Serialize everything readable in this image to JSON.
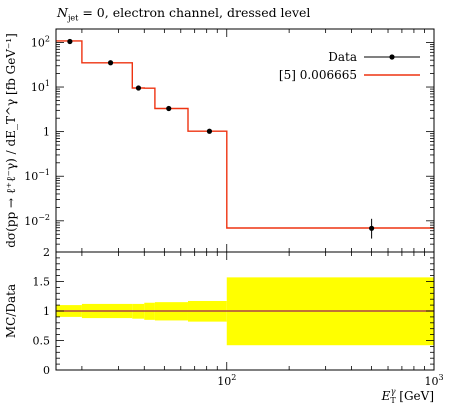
{
  "title": {
    "symbol": "N",
    "subscript": "jet",
    "rest": " = 0, electron channel, dressed level"
  },
  "colors": {
    "data": "#000000",
    "mc": "#ee3311",
    "band": "#ffff00",
    "ratio_line": "#9b1d55"
  },
  "chart_data": {
    "type": "line",
    "xscale": "log",
    "xlim": [
      15,
      1000
    ],
    "xlabel": "E_T^γ [GeV]",
    "x_ticks": [
      {
        "value": 100,
        "label": "10^2"
      },
      {
        "value": 1000,
        "label": "10^3"
      }
    ],
    "main_panel": {
      "yscale": "log",
      "ylim": [
        0.002,
        200
      ],
      "ylabel": "dσ(pp → ℓ⁺ℓ⁻γ) / dE_T^γ [fb GeV⁻¹]",
      "y_ticks": [
        {
          "value": 100,
          "label": "10^2"
        },
        {
          "value": 10,
          "label": "10^1"
        },
        {
          "value": 1,
          "label": "1"
        },
        {
          "value": 0.1,
          "label": "10^-1"
        },
        {
          "value": 0.01,
          "label": "10^-2"
        }
      ],
      "series": [
        {
          "name": "Data",
          "kind": "points",
          "points": [
            {
              "x": 17.5,
              "y": 105,
              "yerr": 3
            },
            {
              "x": 27.5,
              "y": 35,
              "yerr": 1
            },
            {
              "x": 37.5,
              "y": 9.5,
              "yerr": 0.3
            },
            {
              "x": 52.5,
              "y": 3.3,
              "yerr": 0.1
            },
            {
              "x": 82.5,
              "y": 1.02,
              "yerr": 0.03
            },
            {
              "x": 500,
              "y": 0.0068,
              "yerr_up": 0.0043,
              "yerr_down": 0.0028
            }
          ]
        },
        {
          "name": "[5] 0.006665",
          "kind": "histogram",
          "edges": [
            15,
            20,
            35,
            40,
            45,
            65,
            100,
            1000
          ],
          "values": [
            108,
            35,
            9.5,
            9.4,
            3.3,
            1.02,
            0.0069
          ]
        }
      ],
      "legend_position": "top-right"
    },
    "ratio_panel": {
      "ylabel": "MC/Data",
      "ylim": [
        0,
        2
      ],
      "y_ticks": [
        {
          "value": 0,
          "label": "0"
        },
        {
          "value": 0.5,
          "label": "0.5"
        },
        {
          "value": 1,
          "label": "1"
        },
        {
          "value": 1.5,
          "label": "1.5"
        },
        {
          "value": 2,
          "label": "2"
        }
      ],
      "band": {
        "edges": [
          15,
          20,
          35,
          40,
          45,
          65,
          100,
          1000
        ],
        "low": [
          0.9,
          0.88,
          0.87,
          0.85,
          0.84,
          0.82,
          0.42
        ],
        "high": [
          1.1,
          1.12,
          1.12,
          1.14,
          1.15,
          1.17,
          1.57
        ]
      },
      "ratio_line": 1.0
    }
  }
}
